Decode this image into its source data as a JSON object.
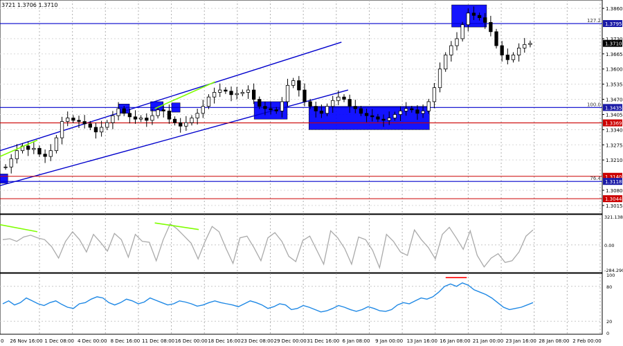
{
  "header": {
    "ohlc_text": "3721 1.3706 1.3710"
  },
  "colors": {
    "candle": "#000000",
    "blue_line": "#0000cc",
    "red_line": "#cc0000",
    "channel": "#0000cc",
    "zone_fill": "#0000ff",
    "cci": "#aaaaaa",
    "rsi": "#1e88e5",
    "divergence": "#7fff00",
    "rsi_mark": "#ff0000",
    "badge_blue": "#1a1aa6",
    "badge_red": "#cc0000",
    "badge_black": "#000000"
  },
  "chart_data": [
    {
      "type": "candlestick",
      "title": "",
      "x_labels": [
        "26 Nov 16:00",
        "1 Dec 08:00",
        "4 Dec 00:00",
        "8 Dec 16:00",
        "11 Dec 08:00",
        "16 Dec 00:00",
        "18 Dec 16:00",
        "23 Dec 08:00",
        "29 Dec 00:00",
        "31 Dec 16:00",
        "6 Jan 08:00",
        "9 Jan 00:00",
        "13 Jan 16:00",
        "16 Jan 08:00",
        "21 Jan 00:00",
        "23 Jan 16:00",
        "28 Jan 08:00",
        "2 Feb 00:00"
      ],
      "x_left_stub": "0",
      "y_ticks": [
        "1.3860",
        "1.3730",
        "1.3665",
        "1.3600",
        "1.3535",
        "1.3470",
        "1.3405",
        "1.3340",
        "1.3275",
        "1.3210",
        "1.3080",
        "1.3015"
      ],
      "ylim": [
        1.2985,
        1.389
      ],
      "close_path": [
        1.318,
        1.3215,
        1.325,
        1.327,
        1.3255,
        1.326,
        1.3235,
        1.3225,
        1.325,
        1.3305,
        1.3375,
        1.339,
        1.338,
        1.3375,
        1.3365,
        1.335,
        1.333,
        1.335,
        1.337,
        1.34,
        1.343,
        1.341,
        1.3395,
        1.3385,
        1.339,
        1.338,
        1.34,
        1.3425,
        1.342,
        1.3385,
        1.337,
        1.3355,
        1.337,
        1.339,
        1.341,
        1.344,
        1.348,
        1.35,
        1.351,
        1.3505,
        1.349,
        1.3495,
        1.35,
        1.351,
        1.347,
        1.344,
        1.343,
        1.3425,
        1.342,
        1.346,
        1.353,
        1.355,
        1.351,
        1.346,
        1.344,
        1.342,
        1.341,
        1.344,
        1.3465,
        1.348,
        1.347,
        1.344,
        1.343,
        1.341,
        1.34,
        1.3395,
        1.3385,
        1.338,
        1.339,
        1.3405,
        1.342,
        1.343,
        1.3425,
        1.341,
        1.342,
        1.346,
        1.352,
        1.36,
        1.366,
        1.37,
        1.373,
        1.379,
        1.384,
        1.383,
        1.382,
        1.38,
        1.376,
        1.37,
        1.366,
        1.364,
        1.366,
        1.369,
        1.3705,
        1.371
      ],
      "levels": [
        {
          "label": "127.2",
          "value": 1.3795,
          "badge": "1.3795",
          "color": "blue"
        },
        {
          "label": "",
          "value": 1.371,
          "badge": "1.3710",
          "color": "gray"
        },
        {
          "label": "100.0",
          "value": 1.3435,
          "badge": "1.3435",
          "color": "blue"
        },
        {
          "label": "",
          "value": 1.3369,
          "badge": "1.3369",
          "color": "red"
        },
        {
          "label": "",
          "value": 1.314,
          "badge": "1.3140",
          "color": "red"
        },
        {
          "label": "76.4",
          "value": 1.3118,
          "badge": "1.3118",
          "color": "blue"
        },
        {
          "label": "",
          "value": 1.3044,
          "badge": "1.3044",
          "color": "red"
        }
      ],
      "channel": {
        "upper": [
          [
            0.0,
            1.325
          ],
          [
            0.567,
            1.3715
          ]
        ],
        "lower": [
          [
            0.0,
            1.31
          ],
          [
            0.578,
            1.351
          ]
        ]
      },
      "zones": [
        {
          "x0": 0.0,
          "x1": 0.013,
          "y0": 1.315,
          "y1": 1.311
        },
        {
          "x0": 0.197,
          "x1": 0.215,
          "y0": 1.345,
          "y1": 1.341
        },
        {
          "x0": 0.25,
          "x1": 0.271,
          "y0": 1.346,
          "y1": 1.342
        },
        {
          "x0": 0.285,
          "x1": 0.299,
          "y0": 1.3455,
          "y1": 1.3415
        },
        {
          "x0": 0.422,
          "x1": 0.477,
          "y0": 1.346,
          "y1": 1.3385
        },
        {
          "x0": 0.513,
          "x1": 0.713,
          "y0": 1.344,
          "y1": 1.334
        },
        {
          "x0": 0.75,
          "x1": 0.808,
          "y0": 1.3875,
          "y1": 1.378
        }
      ],
      "divergence_lines": [
        {
          "x0": 0.0,
          "y0": 1.3225,
          "x1": 0.062,
          "y1": 1.3295
        },
        {
          "x0": 0.257,
          "y0": 1.343,
          "x1": 0.357,
          "y1": 1.3545
        }
      ]
    },
    {
      "type": "line",
      "title": "",
      "y_ticks": [
        "321.1386",
        "0.00",
        "-284.290"
      ],
      "ylim": [
        -300,
        330
      ],
      "values": [
        60,
        70,
        40,
        90,
        110,
        80,
        60,
        -20,
        -150,
        40,
        150,
        60,
        -80,
        120,
        30,
        -70,
        130,
        60,
        -140,
        120,
        40,
        30,
        -180,
        60,
        240,
        180,
        100,
        20,
        -160,
        40,
        210,
        150,
        -40,
        -210,
        80,
        100,
        -30,
        -180,
        80,
        140,
        40,
        -130,
        -190,
        50,
        100,
        -60,
        -220,
        160,
        80,
        -40,
        -220,
        90,
        60,
        -60,
        -260,
        120,
        40,
        -80,
        -120,
        170,
        60,
        -30,
        -160,
        120,
        200,
        80,
        -50,
        160,
        -120,
        -250,
        -150,
        -100,
        -200,
        -180,
        -80,
        100,
        170
      ],
      "divergence_lines": [
        {
          "x0": 0.0,
          "y0": 230,
          "x1": 0.062,
          "y1": 150
        },
        {
          "x0": 0.257,
          "y0": 250,
          "x1": 0.33,
          "y1": 175
        }
      ]
    },
    {
      "type": "line",
      "title": "",
      "y_ticks": [
        "100",
        "80",
        "20",
        "0"
      ],
      "ylim": [
        0,
        100
      ],
      "levels": [
        80,
        20
      ],
      "values": [
        50,
        55,
        48,
        52,
        60,
        55,
        50,
        47,
        52,
        55,
        49,
        44,
        42,
        50,
        52,
        58,
        62,
        60,
        52,
        48,
        52,
        58,
        55,
        50,
        53,
        60,
        56,
        52,
        48,
        50,
        55,
        53,
        50,
        46,
        48,
        52,
        55,
        52,
        50,
        48,
        45,
        50,
        55,
        52,
        48,
        42,
        45,
        50,
        48,
        40,
        42,
        47,
        44,
        40,
        36,
        38,
        42,
        47,
        44,
        40,
        37,
        40,
        45,
        42,
        38,
        37,
        40,
        48,
        52,
        50,
        55,
        60,
        58,
        62,
        70,
        80,
        84,
        80,
        86,
        82,
        74,
        70,
        66,
        60,
        52,
        44,
        40,
        42,
        44,
        48,
        52
      ],
      "mark": {
        "x0": 0.74,
        "x1": 0.775,
        "y": 95
      }
    }
  ]
}
